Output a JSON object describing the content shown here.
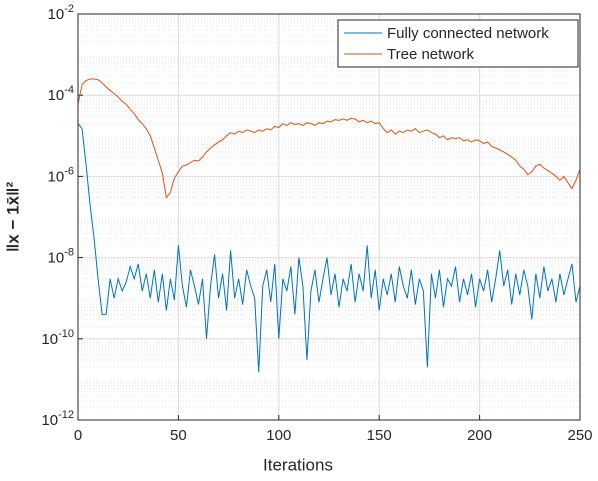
{
  "chart_data": {
    "type": "line",
    "xlabel": "Iterations",
    "ylabel": "‖x − 1x̄‖²",
    "xlim": [
      0,
      250
    ],
    "xticks": [
      0,
      50,
      100,
      150,
      200,
      250
    ],
    "ylim": [
      1e-12,
      0.01
    ],
    "log_y": true,
    "grid": true,
    "legend": "northeast",
    "yticks": [
      {
        "value": 1e-12,
        "label": "10-12"
      },
      {
        "value": 1e-10,
        "label": "10-10"
      },
      {
        "value": 1e-08,
        "label": "10-8"
      },
      {
        "value": 1e-06,
        "label": "10-6"
      },
      {
        "value": 0.0001,
        "label": "10-4"
      },
      {
        "value": 0.01,
        "label": "10-2"
      }
    ],
    "x": [
      0,
      2,
      4,
      6,
      8,
      10,
      12,
      14,
      16,
      18,
      20,
      22,
      24,
      26,
      28,
      30,
      32,
      34,
      36,
      38,
      40,
      42,
      44,
      46,
      48,
      50,
      52,
      54,
      56,
      58,
      60,
      62,
      64,
      66,
      68,
      70,
      72,
      74,
      76,
      78,
      80,
      82,
      84,
      86,
      88,
      90,
      92,
      94,
      96,
      98,
      100,
      102,
      104,
      106,
      108,
      110,
      112,
      114,
      116,
      118,
      120,
      122,
      124,
      126,
      128,
      130,
      132,
      134,
      136,
      138,
      140,
      142,
      144,
      146,
      148,
      150,
      152,
      154,
      156,
      158,
      160,
      162,
      164,
      166,
      168,
      170,
      172,
      174,
      176,
      178,
      180,
      182,
      184,
      186,
      188,
      190,
      192,
      194,
      196,
      198,
      200,
      202,
      204,
      206,
      208,
      210,
      212,
      214,
      216,
      218,
      220,
      222,
      224,
      226,
      228,
      230,
      232,
      234,
      236,
      238,
      240,
      242,
      244,
      246,
      248,
      250
    ],
    "series": [
      {
        "name": "Fully connected network",
        "color": "#0072bd",
        "values": [
          2e-05,
          1.5e-05,
          2e-06,
          2e-07,
          3e-08,
          3e-09,
          4e-10,
          4e-10,
          3e-09,
          1e-09,
          3e-09,
          1.5e-09,
          2.5e-09,
          6e-09,
          3e-09,
          7e-09,
          1.5e-09,
          4e-09,
          1e-09,
          5e-09,
          8e-10,
          4e-09,
          5e-10,
          3e-09,
          9e-10,
          2e-08,
          2e-09,
          6e-10,
          5e-09,
          2e-09,
          7e-10,
          3e-09,
          1e-10,
          2e-09,
          1.2e-08,
          1e-09,
          4e-09,
          5e-10,
          1.5e-08,
          1e-09,
          3e-09,
          7e-10,
          5e-09,
          2e-09,
          1e-09,
          1.5e-11,
          2e-09,
          5e-09,
          8e-10,
          7e-09,
          1e-10,
          3e-09,
          1.5e-09,
          6e-09,
          4e-10,
          1e-08,
          2e-09,
          3e-11,
          1.5e-09,
          5e-09,
          8e-10,
          3e-09,
          1e-08,
          1.2e-09,
          4e-09,
          6e-10,
          3e-09,
          1.5e-09,
          7e-09,
          8e-10,
          4e-09,
          1.5e-09,
          2e-08,
          1e-09,
          5e-09,
          5e-10,
          3e-09,
          1.2e-09,
          4e-09,
          8e-10,
          6e-09,
          2e-09,
          1e-09,
          5e-09,
          7e-10,
          3e-09,
          1.5e-09,
          2e-11,
          4e-09,
          1e-09,
          5e-09,
          6e-10,
          3e-09,
          2e-09,
          6e-09,
          8e-10,
          3e-09,
          1.2e-09,
          4e-09,
          6e-10,
          3e-09,
          1.5e-09,
          5e-09,
          8e-10,
          3e-09,
          1.5e-08,
          2e-09,
          5e-09,
          7e-10,
          4e-09,
          1.2e-09,
          5e-09,
          2e-09,
          3e-10,
          4e-09,
          1e-09,
          6e-09,
          1.5e-09,
          3e-09,
          8e-10,
          4e-09,
          1.2e-09,
          3e-09,
          7e-09,
          8e-10,
          2e-09
        ]
      },
      {
        "name": "Tree network",
        "color": "#d95319",
        "values": [
          6e-05,
          0.00018,
          0.00023,
          0.00025,
          0.00025,
          0.00024,
          0.0002,
          0.00016,
          0.00013,
          0.00011,
          9e-05,
          7e-05,
          6e-05,
          4.5e-05,
          3.5e-05,
          2.5e-05,
          2e-05,
          1.5e-05,
          1e-05,
          5e-06,
          2.5e-06,
          1.2e-06,
          3e-07,
          4e-07,
          9e-07,
          1.3e-06,
          1.8e-06,
          1.9e-06,
          2.2e-06,
          2.5e-06,
          2.4e-06,
          3e-06,
          4e-06,
          5e-06,
          6e-06,
          7e-06,
          8e-06,
          1e-05,
          1.2e-05,
          1.1e-05,
          1.3e-05,
          1.2e-05,
          1.4e-05,
          1.3e-05,
          1.2e-05,
          1.4e-05,
          1.3e-05,
          1.5e-05,
          1.4e-05,
          1.7e-05,
          1.6e-05,
          2e-05,
          1.8e-05,
          2.1e-05,
          1.9e-05,
          2e-05,
          1.8e-05,
          2.1e-05,
          2e-05,
          1.8e-05,
          2.1e-05,
          2e-05,
          2.3e-05,
          2.2e-05,
          2.5e-05,
          2.4e-05,
          2.6e-05,
          2.4e-05,
          2.7e-05,
          2.6e-05,
          2.2e-05,
          2.4e-05,
          2.1e-05,
          2.3e-05,
          2e-05,
          2.1e-05,
          1.5e-05,
          1.2e-05,
          1.4e-05,
          1.1e-05,
          1.3e-05,
          1.2e-05,
          1.4e-05,
          1.3e-05,
          1.5e-05,
          1.2e-05,
          1.3e-05,
          1.4e-05,
          1.2e-05,
          1.1e-05,
          9e-06,
          1e-05,
          8e-06,
          9e-06,
          8.5e-06,
          9e-06,
          7.5e-06,
          8e-06,
          7e-06,
          8e-06,
          7.5e-06,
          6.5e-06,
          7e-06,
          5.5e-06,
          5e-06,
          4.5e-06,
          4e-06,
          3.5e-06,
          3e-06,
          2.5e-06,
          1.8e-06,
          1.5e-06,
          1.1e-06,
          1.3e-06,
          1.8e-06,
          2e-06,
          1.6e-06,
          1.4e-06,
          1.2e-06,
          1e-06,
          8e-07,
          1e-06,
          7e-07,
          5e-07,
          8e-07,
          1.5e-06
        ]
      }
    ]
  }
}
